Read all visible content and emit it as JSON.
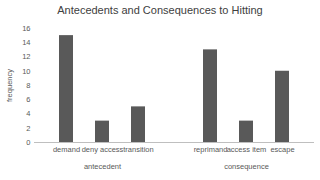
{
  "chart_data": {
    "type": "bar",
    "title": "Antecedents and Consequences to Hitting",
    "y_label": "frequency",
    "categories": [
      "demand",
      "deny access",
      "transition",
      null,
      "reprimand",
      "access item",
      "escape"
    ],
    "values": [
      15,
      3,
      5,
      null,
      13,
      3,
      10
    ],
    "groups": [
      "antecedent",
      "antecedent",
      "antecedent",
      null,
      "consequence",
      "consequence",
      "consequence"
    ],
    "color": "#595959",
    "ylim": [
      0,
      16
    ],
    "yticks": [
      0,
      2,
      4,
      6,
      8,
      10,
      12,
      14,
      16
    ],
    "grid": false
  }
}
